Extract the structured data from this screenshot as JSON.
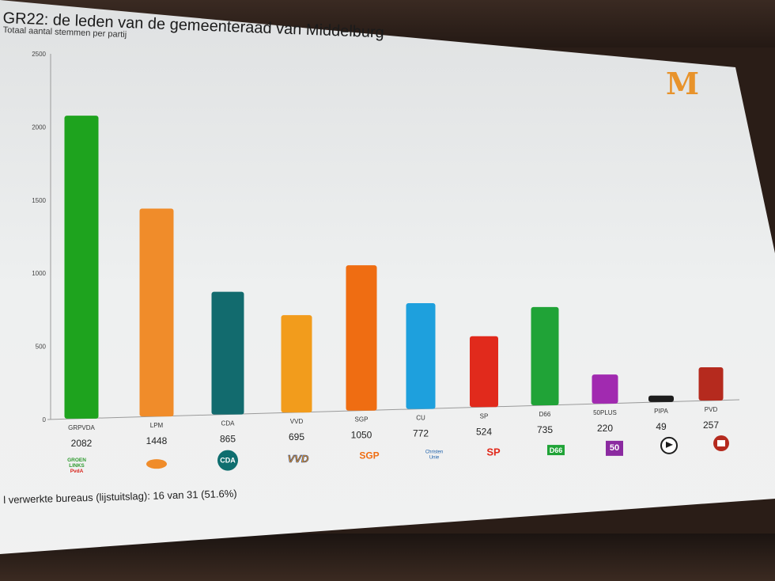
{
  "header": {
    "title": "GR22: de leden van de gemeenteraad van Middelburg",
    "subtitle": "Totaal aantal stemmen per partij"
  },
  "footer": {
    "progress_text": "l verwerkte bureaus (lijstuitslag): 16 van 31 (51.6%)"
  },
  "brand": {
    "logo_letter": "M",
    "logo_color": "#e8932b"
  },
  "chart_data": {
    "type": "bar",
    "title": "GR22: de leden van de gemeenteraad van Middelburg",
    "subtitle": "Totaal aantal stemmen per partij",
    "ylim": [
      0,
      2500
    ],
    "yticks": [
      0,
      500,
      1000,
      1500,
      2000,
      2500
    ],
    "grid": false,
    "categories": [
      "GRPVDA",
      "LPM",
      "CDA",
      "VVD",
      "SGP",
      "CU",
      "SP",
      "D66",
      "50PLUS",
      "PIPA",
      "PVD"
    ],
    "values": [
      2082,
      1448,
      865,
      695,
      1050,
      772,
      524,
      735,
      220,
      49,
      257
    ],
    "value_labels": [
      "2082",
      "1448",
      "865",
      "695",
      "1050",
      "772",
      "524",
      "735",
      "220",
      "49",
      "257"
    ],
    "colors": [
      "#1ea31e",
      "#f08c2a",
      "#126b6e",
      "#f29c1c",
      "#ef6d12",
      "#1ea0dd",
      "#e12a1c",
      "#20a337",
      "#a12ab0",
      "#1d1d1d",
      "#b52a1e"
    ],
    "party_icons": [
      {
        "name": "groenlinks-pvda-logo",
        "text": "GROEN LINKS PvdA"
      },
      {
        "name": "lpm-logo",
        "text": ""
      },
      {
        "name": "cda-logo",
        "text": "CDA"
      },
      {
        "name": "vvd-logo",
        "text": "VVD"
      },
      {
        "name": "sgp-logo",
        "text": "SGP"
      },
      {
        "name": "cu-logo",
        "text": "ChristenUnie"
      },
      {
        "name": "sp-logo",
        "text": "SP"
      },
      {
        "name": "d66-logo",
        "text": "D66"
      },
      {
        "name": "50plus-logo",
        "text": "50"
      },
      {
        "name": "pipa-logo",
        "text": ""
      },
      {
        "name": "pvd-logo",
        "text": ""
      }
    ]
  }
}
